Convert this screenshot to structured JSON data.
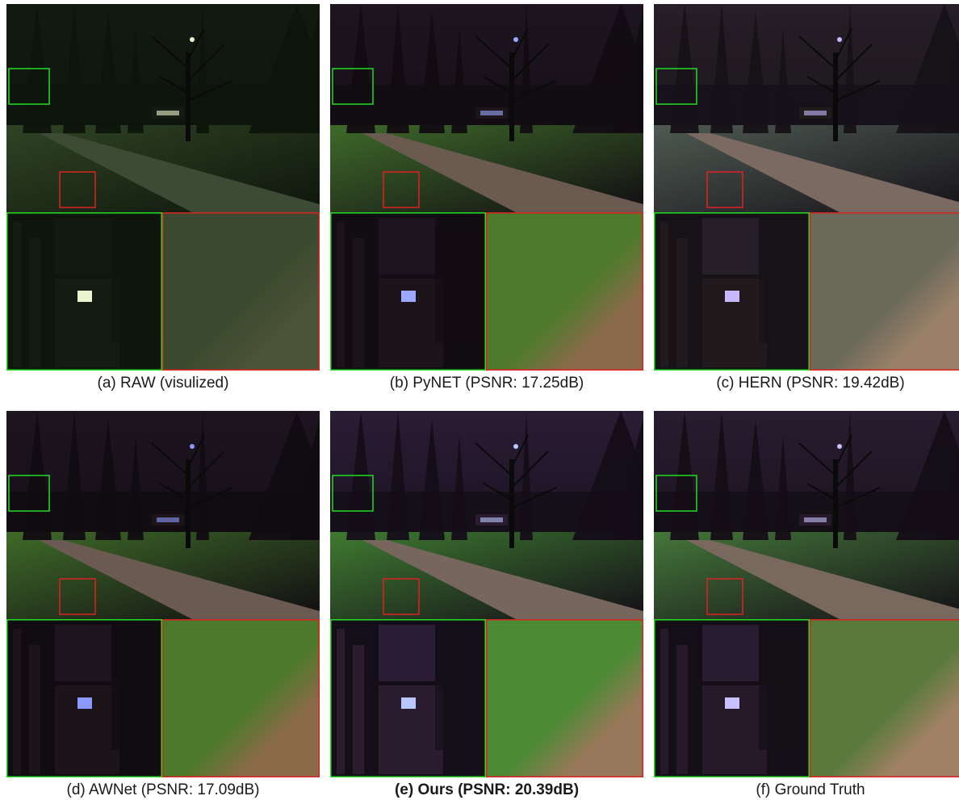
{
  "figure": {
    "panels": [
      {
        "id": "a",
        "caption": "(a) RAW (visulized)",
        "bold": false,
        "palette": {
          "sky": "#121a10",
          "trees": "#0e150c",
          "grass": "#2f4424",
          "path": "#3d4a34",
          "zoomGrass": "#3b4a2e",
          "zoomPath": "#4a5238",
          "building": "#141b12",
          "light": "#eaf5d0"
        }
      },
      {
        "id": "b",
        "caption": "(b) PyNET (PSNR: 17.25dB)",
        "bold": false,
        "palette": {
          "sky": "#1d1420",
          "trees": "#120d12",
          "grass": "#3e6a2a",
          "path": "#6a5a50",
          "zoomGrass": "#4f7a2c",
          "zoomPath": "#8a6a4a",
          "building": "#1c1418",
          "light": "#9aa8ff"
        }
      },
      {
        "id": "c",
        "caption": "(c) HERN (PSNR: 19.42dB)",
        "bold": false,
        "palette": {
          "sky": "#261e26",
          "trees": "#161218",
          "grass": "#4e5a52",
          "path": "#7a6a62",
          "zoomGrass": "#6a6a5a",
          "zoomPath": "#9a8068",
          "building": "#201a1c",
          "light": "#c8b8ff"
        }
      },
      {
        "id": "d",
        "caption": "(d) AWNet (PSNR: 17.09dB)",
        "bold": false,
        "palette": {
          "sky": "#1d1420",
          "trees": "#110c12",
          "grass": "#3e6a28",
          "path": "#6a5a52",
          "zoomGrass": "#4c7a2a",
          "zoomPath": "#8a6a48",
          "building": "#1c1418",
          "light": "#8a98ff"
        }
      },
      {
        "id": "e",
        "caption": "(e) Ours (PSNR: 20.39dB)",
        "bold": true,
        "palette": {
          "sky": "#2a1c34",
          "trees": "#140e18",
          "grass": "#3e7a30",
          "path": "#76665e",
          "zoomGrass": "#4c8a34",
          "zoomPath": "#98785a",
          "building": "#2a1c2e",
          "light": "#b8c8ff"
        }
      },
      {
        "id": "f",
        "caption": "(f) Ground Truth",
        "bold": false,
        "palette": {
          "sky": "#281c30",
          "trees": "#140e16",
          "grass": "#44763a",
          "path": "#78685e",
          "zoomGrass": "#5a7a3c",
          "zoomPath": "#a08064",
          "building": "#261a2a",
          "light": "#c8c0ff"
        }
      }
    ],
    "box_colors": {
      "green": "#22dd22",
      "red": "#dd2222"
    }
  }
}
